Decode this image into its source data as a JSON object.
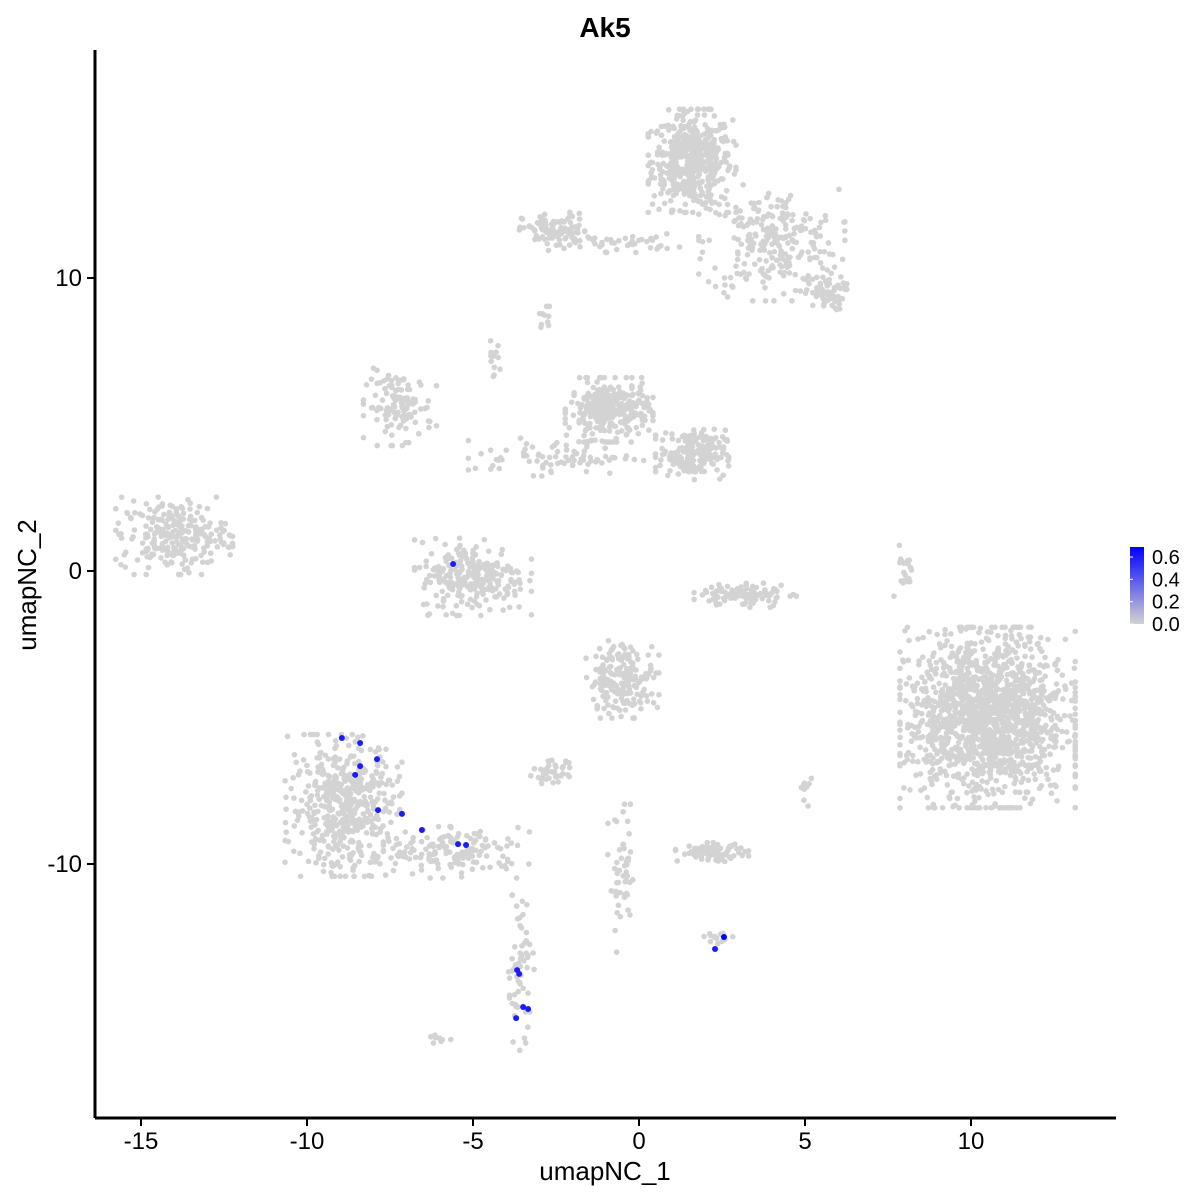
{
  "chart_data": {
    "type": "scatter",
    "title": "Ak5",
    "xlabel": "umapNC_1",
    "ylabel": "umapNC_2",
    "xlim": [
      -16.5,
      14.5
    ],
    "ylim": [
      -18.5,
      17.8
    ],
    "xticks": [
      -15,
      -10,
      -5,
      0,
      5,
      10
    ],
    "yticks": [
      -10,
      0,
      10
    ],
    "grid": false,
    "colorbar": {
      "low_color": "#D3D3D3",
      "high_color": "#0000FF",
      "range": [
        0,
        0.69
      ],
      "ticks": [
        "0.0",
        "0.2",
        "0.4",
        "0.6"
      ],
      "placement": "right"
    },
    "background_clusters_value": 0,
    "background_clusters": [
      {
        "cx": 1.6,
        "cy": 14.0,
        "sx": 0.6,
        "sy": 0.8,
        "n": 500
      },
      {
        "cx": 4.0,
        "cy": 11.2,
        "sx": 1.0,
        "sy": 0.9,
        "n": 250
      },
      {
        "cx": 5.6,
        "cy": 9.5,
        "sx": 0.3,
        "sy": 0.3,
        "n": 60
      },
      {
        "cx": -2.5,
        "cy": 11.6,
        "sx": 0.5,
        "sy": 0.3,
        "n": 100
      },
      {
        "cx": -0.5,
        "cy": 11.2,
        "sx": 0.8,
        "sy": 0.15,
        "n": 40
      },
      {
        "cx": -2.8,
        "cy": 8.7,
        "sx": 0.1,
        "sy": 0.2,
        "n": 10
      },
      {
        "cx": -4.4,
        "cy": 7.2,
        "sx": 0.1,
        "sy": 0.3,
        "n": 12
      },
      {
        "cx": -7.2,
        "cy": 5.6,
        "sx": 0.5,
        "sy": 0.6,
        "n": 120
      },
      {
        "cx": -0.9,
        "cy": 5.5,
        "sx": 0.6,
        "sy": 0.5,
        "n": 300
      },
      {
        "cx": 1.6,
        "cy": 4.0,
        "sx": 0.5,
        "sy": 0.4,
        "n": 200
      },
      {
        "cx": -2.5,
        "cy": 3.9,
        "sx": 1.2,
        "sy": 0.3,
        "n": 80
      },
      {
        "cx": -5.0,
        "cy": -0.2,
        "sx": 0.8,
        "sy": 0.6,
        "n": 250
      },
      {
        "cx": -14.0,
        "cy": 1.2,
        "sx": 0.8,
        "sy": 0.6,
        "n": 250
      },
      {
        "cx": 10.5,
        "cy": -5.0,
        "sx": 1.2,
        "sy": 1.4,
        "n": 1500
      },
      {
        "cx": -0.5,
        "cy": -3.7,
        "sx": 0.5,
        "sy": 0.6,
        "n": 200
      },
      {
        "cx": 3.2,
        "cy": -0.8,
        "sx": 0.7,
        "sy": 0.2,
        "n": 100
      },
      {
        "cx": -8.9,
        "cy": -8.0,
        "sx": 0.8,
        "sy": 1.1,
        "n": 500
      },
      {
        "cx": -5.5,
        "cy": -9.6,
        "sx": 1.0,
        "sy": 0.4,
        "n": 150
      },
      {
        "cx": -3.6,
        "cy": -13.5,
        "sx": 0.2,
        "sy": 1.3,
        "n": 60
      },
      {
        "cx": -2.6,
        "cy": -6.9,
        "sx": 0.3,
        "sy": 0.2,
        "n": 40
      },
      {
        "cx": 2.2,
        "cy": -9.6,
        "sx": 0.5,
        "sy": 0.15,
        "n": 80
      },
      {
        "cx": -0.5,
        "cy": -10.6,
        "sx": 0.2,
        "sy": 1.2,
        "n": 50
      },
      {
        "cx": 2.4,
        "cy": -12.5,
        "sx": 0.2,
        "sy": 0.1,
        "n": 15
      },
      {
        "cx": 8.0,
        "cy": 0.0,
        "sx": 0.15,
        "sy": 0.5,
        "n": 20
      },
      {
        "cx": 5.0,
        "cy": -7.5,
        "sx": 0.1,
        "sy": 0.3,
        "n": 10
      },
      {
        "cx": -6.0,
        "cy": -16.0,
        "sx": 0.15,
        "sy": 0.1,
        "n": 8
      }
    ],
    "expressing_points": [
      {
        "x": -8.95,
        "y": -5.7,
        "v": 0.6
      },
      {
        "x": -8.4,
        "y": -5.87,
        "v": 0.6
      },
      {
        "x": -7.89,
        "y": -6.42,
        "v": 0.6
      },
      {
        "x": -8.4,
        "y": -6.66,
        "v": 0.6
      },
      {
        "x": -8.55,
        "y": -6.96,
        "v": 0.6
      },
      {
        "x": -7.86,
        "y": -8.16,
        "v": 0.6
      },
      {
        "x": -7.14,
        "y": -8.29,
        "v": 0.6
      },
      {
        "x": -6.54,
        "y": -8.84,
        "v": 0.6
      },
      {
        "x": -5.45,
        "y": -9.32,
        "v": 0.6
      },
      {
        "x": -5.21,
        "y": -9.35,
        "v": 0.6
      },
      {
        "x": -5.6,
        "y": 0.24,
        "v": 0.6
      },
      {
        "x": -3.67,
        "y": -13.62,
        "v": 0.6
      },
      {
        "x": -3.61,
        "y": -13.75,
        "v": 0.6
      },
      {
        "x": -3.49,
        "y": -14.88,
        "v": 0.6
      },
      {
        "x": -3.34,
        "y": -14.95,
        "v": 0.6
      },
      {
        "x": -3.7,
        "y": -15.26,
        "v": 0.6
      },
      {
        "x": 2.56,
        "y": -12.49,
        "v": 0.69
      },
      {
        "x": 2.29,
        "y": -12.9,
        "v": 0.6
      }
    ]
  }
}
